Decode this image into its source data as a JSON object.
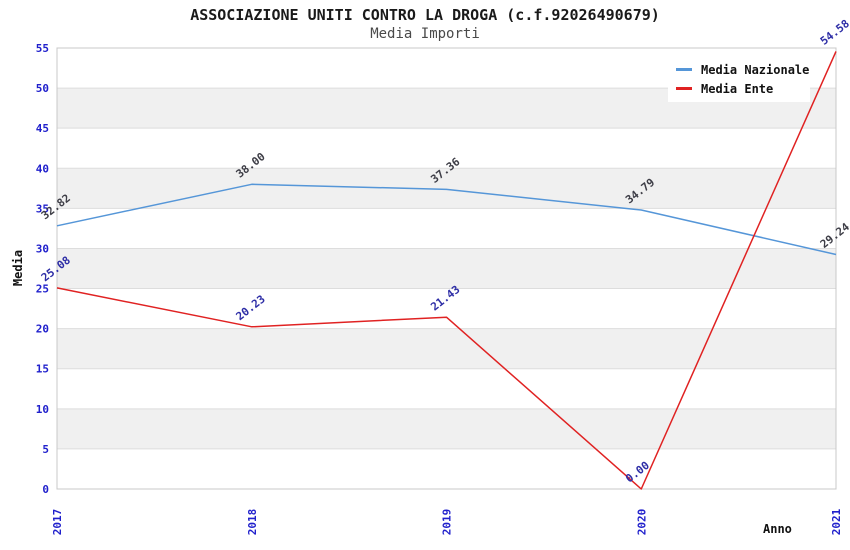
{
  "header": {
    "title": "ASSOCIAZIONE UNITI CONTRO LA DROGA (c.f.92026490679)",
    "subtitle": "Media Importi"
  },
  "legend": {
    "items": [
      {
        "label": "Media Nazionale",
        "color": "#5596d8"
      },
      {
        "label": "Media Ente",
        "color": "#e02222"
      }
    ]
  },
  "chart_data": {
    "type": "line",
    "title": "ASSOCIAZIONE UNITI CONTRO LA DROGA (c.f.92026490679)",
    "subtitle": "Media Importi",
    "xlabel": "Anno",
    "ylabel": "Media",
    "x": [
      "2017",
      "2018",
      "2019",
      "2020",
      "2021"
    ],
    "series": [
      {
        "name": "Media Nazionale",
        "color": "#5596d8",
        "label_color": "#3d3d46",
        "values": [
          32.82,
          38.0,
          37.36,
          34.79,
          29.24
        ]
      },
      {
        "name": "Media Ente",
        "color": "#e02222",
        "label_color": "#2d2da6",
        "values": [
          25.08,
          20.23,
          21.43,
          0.0,
          54.58
        ]
      }
    ],
    "ylim": [
      0,
      55
    ],
    "y_tick_step": 5,
    "y_ticks": [
      0,
      5,
      10,
      15,
      20,
      25,
      30,
      35,
      40,
      45,
      50,
      55
    ],
    "grid": true,
    "band_color": "#f0f0f0",
    "gridline_color": "#dddddd",
    "plot_border_color": "#c8c8c8",
    "tick_label_color": "#2020cc",
    "axis_title_color": "#111111",
    "legend_position": "top-right",
    "data_labels_visible": true,
    "data_label_format": "0.00"
  }
}
